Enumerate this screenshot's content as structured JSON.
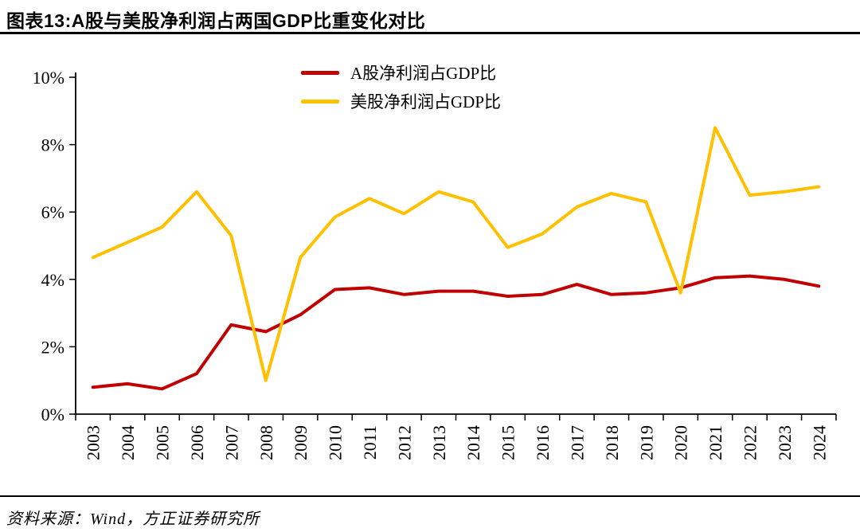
{
  "page": {
    "title": "图表13:A股与美股净利润占两国GDP比重变化对比",
    "source": "资料来源：Wind，方正证券研究所"
  },
  "chart_data": {
    "type": "line",
    "title": "A股与美股净利润占两国GDP比重变化对比",
    "categories": [
      "2003",
      "2004",
      "2005",
      "2006",
      "2007",
      "2008",
      "2009",
      "2010",
      "2011",
      "2012",
      "2013",
      "2014",
      "2015",
      "2016",
      "2017",
      "2018",
      "2019",
      "2020",
      "2021",
      "2022",
      "2023",
      "2024"
    ],
    "series": [
      {
        "name": "A股净利润占GDP比",
        "color": "#C00000",
        "values": [
          0.8,
          0.9,
          0.75,
          1.2,
          2.65,
          2.45,
          2.95,
          3.7,
          3.75,
          3.55,
          3.65,
          3.65,
          3.5,
          3.55,
          3.85,
          3.55,
          3.6,
          3.75,
          4.05,
          4.1,
          4.0,
          3.8
        ]
      },
      {
        "name": "美股净利润占GDP比",
        "color": "#FFC000",
        "values": [
          4.65,
          5.1,
          5.55,
          6.6,
          5.3,
          1.0,
          4.65,
          5.85,
          6.4,
          5.95,
          6.6,
          6.3,
          4.95,
          5.35,
          6.15,
          6.55,
          6.3,
          3.6,
          8.5,
          6.5,
          6.6,
          6.75
        ]
      }
    ],
    "xlabel": "",
    "ylabel": "",
    "ylim": [
      0,
      10
    ],
    "ytick_step": 2,
    "ytick_suffix": "%",
    "grid": false,
    "legend_position": "top-center"
  }
}
